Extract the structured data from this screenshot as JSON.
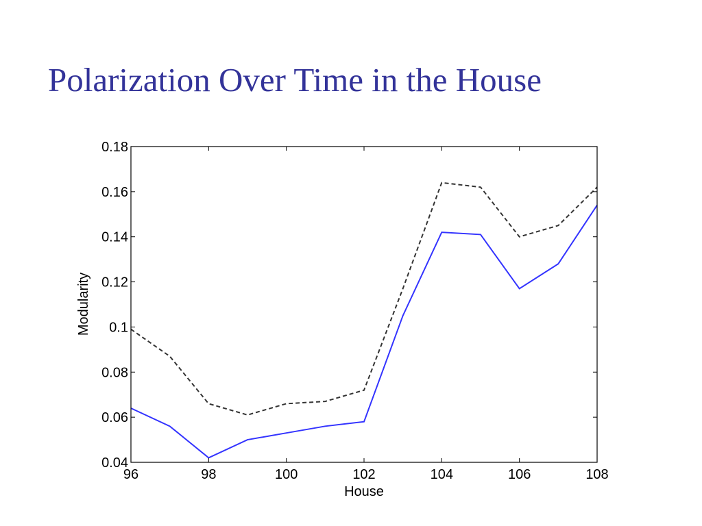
{
  "slide": {
    "title": "Polarization Over Time in the House"
  },
  "chart_data": {
    "type": "line",
    "xlabel": "House",
    "ylabel": "Modularity",
    "xlim": [
      96,
      108
    ],
    "ylim": [
      0.04,
      0.18
    ],
    "x_ticks": [
      96,
      98,
      100,
      102,
      104,
      106,
      108
    ],
    "y_ticks": [
      0.04,
      0.06,
      0.08,
      0.1,
      0.12,
      0.14,
      0.16,
      0.18
    ],
    "y_tick_labels": [
      "0.04",
      "0.06",
      "0.08",
      "0.1",
      "0.12",
      "0.14",
      "0.16",
      "0.18"
    ],
    "grid": false,
    "x": [
      96,
      97,
      98,
      99,
      100,
      101,
      102,
      103,
      104,
      105,
      106,
      107,
      108
    ],
    "series": [
      {
        "values": [
          0.099,
          0.087,
          0.066,
          0.061,
          0.066,
          0.067,
          0.072,
          0.117,
          0.164,
          0.162,
          0.14,
          0.145,
          0.162
        ],
        "color": "#333333",
        "style": "dashed"
      },
      {
        "values": [
          0.064,
          0.056,
          0.042,
          0.05,
          0.053,
          0.056,
          0.058,
          0.105,
          0.142,
          0.141,
          0.117,
          0.128,
          0.154
        ],
        "color": "#3333ff",
        "style": "solid"
      }
    ]
  }
}
